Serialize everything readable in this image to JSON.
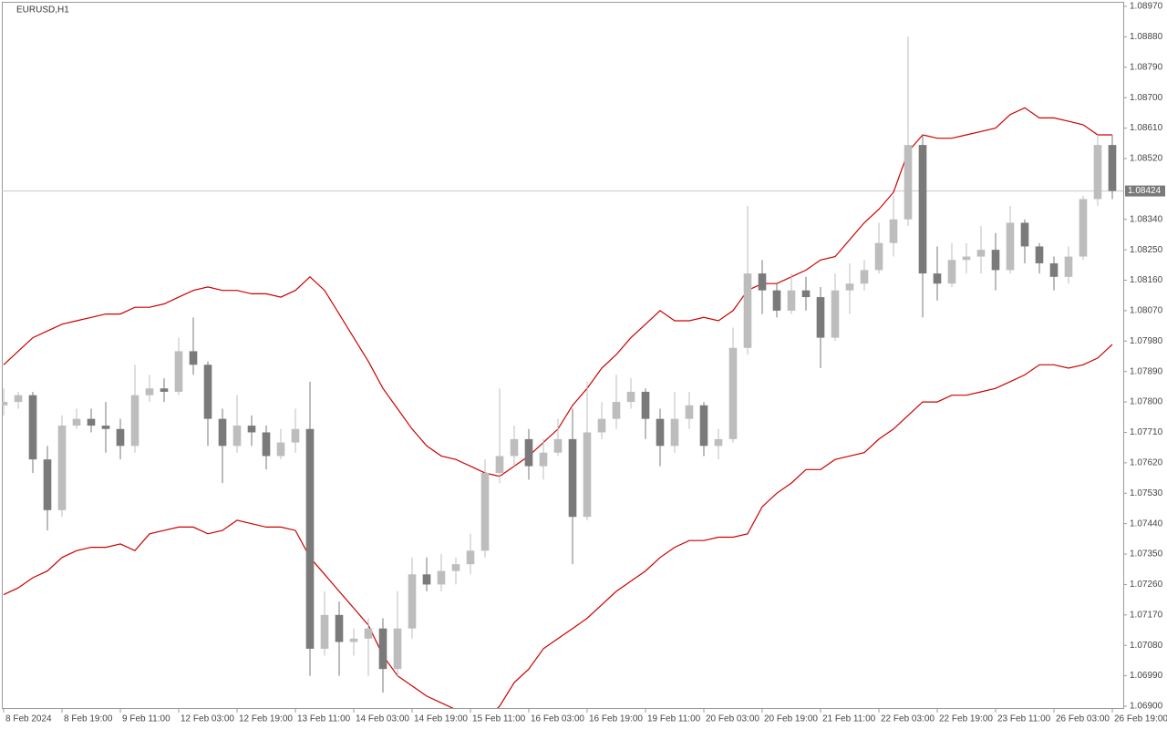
{
  "chart_data": {
    "type": "candlestick",
    "title": "EURUSD,H1",
    "x": [
      0,
      4,
      8,
      12,
      16,
      20,
      24,
      28,
      32,
      36,
      40,
      44,
      48,
      52,
      56,
      60,
      64,
      68,
      72,
      76,
      80,
      84,
      88,
      92,
      96,
      100,
      104,
      108,
      112,
      116,
      120,
      124,
      128,
      132,
      136,
      140,
      144,
      148,
      152,
      156,
      160,
      164,
      168,
      172,
      176,
      180,
      184,
      188,
      192,
      196,
      200,
      204,
      208,
      212,
      216,
      220,
      224,
      228,
      232,
      236,
      240,
      244,
      248,
      252,
      256,
      260,
      264,
      268,
      272,
      276,
      280,
      284,
      288,
      292,
      296,
      300,
      304
    ],
    "ohlc": [
      [
        1.0779,
        1.0784,
        1.0776,
        1.078
      ],
      [
        1.078,
        1.0783,
        1.0778,
        1.0782
      ],
      [
        1.0782,
        1.0783,
        1.0759,
        1.0763
      ],
      [
        1.0763,
        1.0767,
        1.0742,
        1.0748
      ],
      [
        1.0748,
        1.0776,
        1.0746,
        1.0773
      ],
      [
        1.0773,
        1.0778,
        1.0772,
        1.0775
      ],
      [
        1.0775,
        1.0778,
        1.0771,
        1.0773
      ],
      [
        1.0773,
        1.078,
        1.0765,
        1.0772
      ],
      [
        1.0772,
        1.0775,
        1.0763,
        1.0767
      ],
      [
        1.0767,
        1.0791,
        1.0765,
        1.0782
      ],
      [
        1.0782,
        1.0788,
        1.078,
        1.0784
      ],
      [
        1.0784,
        1.0787,
        1.078,
        1.0783
      ],
      [
        1.0783,
        1.0799,
        1.0782,
        1.0795
      ],
      [
        1.0795,
        1.0805,
        1.0788,
        1.0791
      ],
      [
        1.0791,
        1.0792,
        1.0767,
        1.0775
      ],
      [
        1.0775,
        1.0778,
        1.0756,
        1.0767
      ],
      [
        1.0767,
        1.0782,
        1.0765,
        1.0773
      ],
      [
        1.0773,
        1.0776,
        1.0767,
        1.0771
      ],
      [
        1.0771,
        1.0773,
        1.076,
        1.0764
      ],
      [
        1.0764,
        1.0772,
        1.0763,
        1.0768
      ],
      [
        1.0768,
        1.0778,
        1.0765,
        1.0772
      ],
      [
        1.0772,
        1.0786,
        1.0699,
        1.0707
      ],
      [
        1.0707,
        1.0724,
        1.0705,
        1.0717
      ],
      [
        1.0717,
        1.0721,
        1.0699,
        1.0709
      ],
      [
        1.0709,
        1.0713,
        1.0705,
        1.071
      ],
      [
        1.071,
        1.0716,
        1.0699,
        1.0713
      ],
      [
        1.0713,
        1.0716,
        1.0694,
        1.0701
      ],
      [
        1.0701,
        1.0724,
        1.0699,
        1.0713
      ],
      [
        1.0713,
        1.0734,
        1.071,
        1.0729
      ],
      [
        1.0729,
        1.0734,
        1.0724,
        1.0726
      ],
      [
        1.0726,
        1.0735,
        1.0724,
        1.073
      ],
      [
        1.073,
        1.0734,
        1.0726,
        1.0732
      ],
      [
        1.0732,
        1.0741,
        1.0729,
        1.0736
      ],
      [
        1.0736,
        1.0763,
        1.0734,
        1.0759
      ],
      [
        1.0759,
        1.0784,
        1.0756,
        1.0764
      ],
      [
        1.0764,
        1.0773,
        1.0761,
        1.0769
      ],
      [
        1.0769,
        1.0772,
        1.0757,
        1.0761
      ],
      [
        1.0761,
        1.0769,
        1.0757,
        1.0765
      ],
      [
        1.0765,
        1.0775,
        1.0764,
        1.0769
      ],
      [
        1.0769,
        1.0778,
        1.0732,
        1.0746
      ],
      [
        1.0746,
        1.0786,
        1.0745,
        1.0771
      ],
      [
        1.0771,
        1.078,
        1.0769,
        1.0775
      ],
      [
        1.0775,
        1.0788,
        1.0772,
        1.078
      ],
      [
        1.078,
        1.0787,
        1.0778,
        1.0783
      ],
      [
        1.0783,
        1.0784,
        1.0769,
        1.0775
      ],
      [
        1.0775,
        1.0778,
        1.0761,
        1.0767
      ],
      [
        1.0767,
        1.0783,
        1.0765,
        1.0775
      ],
      [
        1.0775,
        1.0783,
        1.0772,
        1.0779
      ],
      [
        1.0779,
        1.078,
        1.0764,
        1.0767
      ],
      [
        1.0767,
        1.0772,
        1.0763,
        1.0769
      ],
      [
        1.0769,
        1.0802,
        1.0768,
        1.0796
      ],
      [
        1.0796,
        1.0838,
        1.0794,
        1.0818
      ],
      [
        1.0818,
        1.0822,
        1.0806,
        1.0813
      ],
      [
        1.0813,
        1.0815,
        1.0805,
        1.0807
      ],
      [
        1.0807,
        1.0818,
        1.0806,
        1.0813
      ],
      [
        1.0813,
        1.0817,
        1.0807,
        1.0811
      ],
      [
        1.0811,
        1.0814,
        1.079,
        1.0799
      ],
      [
        1.0799,
        1.0818,
        1.0798,
        1.0813
      ],
      [
        1.0813,
        1.0821,
        1.0806,
        1.0815
      ],
      [
        1.0815,
        1.0822,
        1.0813,
        1.0819
      ],
      [
        1.0819,
        1.0833,
        1.0818,
        1.0827
      ],
      [
        1.0827,
        1.0841,
        1.0823,
        1.0834
      ],
      [
        1.0834,
        1.0888,
        1.0832,
        1.0856
      ],
      [
        1.0856,
        1.0859,
        1.0805,
        1.0818
      ],
      [
        1.0818,
        1.0826,
        1.081,
        1.0815
      ],
      [
        1.0815,
        1.0827,
        1.0814,
        1.0822
      ],
      [
        1.0822,
        1.0827,
        1.0818,
        1.0823
      ],
      [
        1.0823,
        1.0832,
        1.0818,
        1.0825
      ],
      [
        1.0825,
        1.083,
        1.0813,
        1.0819
      ],
      [
        1.0819,
        1.0838,
        1.0818,
        1.0833
      ],
      [
        1.0833,
        1.0834,
        1.0821,
        1.0826
      ],
      [
        1.0826,
        1.0827,
        1.0818,
        1.0821
      ],
      [
        1.0821,
        1.0823,
        1.0813,
        1.0817
      ],
      [
        1.0817,
        1.0826,
        1.0815,
        1.0823
      ],
      [
        1.0823,
        1.0841,
        1.0822,
        1.084
      ],
      [
        1.084,
        1.0859,
        1.0838,
        1.0856
      ],
      [
        1.0856,
        1.0859,
        1.084,
        1.08424
      ]
    ],
    "bull_color": "#bdbdbd",
    "bear_color": "#7a7a7a",
    "bands": [
      {
        "color": "#cc0000",
        "values": [
          1.0791,
          1.0795,
          1.0799,
          1.0801,
          1.0803,
          1.0804,
          1.0805,
          1.0806,
          1.0806,
          1.0808,
          1.0808,
          1.0809,
          1.0811,
          1.0813,
          1.0814,
          1.0813,
          1.0813,
          1.0812,
          1.0812,
          1.0811,
          1.0813,
          1.0817,
          1.0813,
          1.0806,
          1.0799,
          1.0792,
          1.0784,
          1.0778,
          1.0772,
          1.0767,
          1.0764,
          1.0763,
          1.0761,
          1.0759,
          1.0758,
          1.0761,
          1.0764,
          1.0768,
          1.0772,
          1.0779,
          1.0784,
          1.079,
          1.0794,
          1.0799,
          1.0803,
          1.0807,
          1.0804,
          1.0804,
          1.0805,
          1.0804,
          1.0807,
          1.0813,
          1.0815,
          1.0815,
          1.0817,
          1.0819,
          1.0822,
          1.0823,
          1.0828,
          1.0833,
          1.0837,
          1.0842,
          1.0854,
          1.0859,
          1.0858,
          1.0858,
          1.0859,
          1.086,
          1.0861,
          1.0865,
          1.0867,
          1.0864,
          1.0864,
          1.0863,
          1.0862,
          1.0859,
          1.0859
        ]
      },
      {
        "color": "#cc0000",
        "values": [
          1.0723,
          1.0725,
          1.0728,
          1.073,
          1.0734,
          1.0736,
          1.0737,
          1.0737,
          1.0738,
          1.0736,
          1.0741,
          1.0742,
          1.0743,
          1.0743,
          1.0741,
          1.0742,
          1.0745,
          1.0744,
          1.0743,
          1.0743,
          1.0742,
          1.0734,
          1.0729,
          1.0724,
          1.0719,
          1.0714,
          1.0705,
          1.0699,
          1.0696,
          1.0693,
          1.0691,
          1.0689,
          1.0687,
          1.0686,
          1.069,
          1.0697,
          1.0701,
          1.0707,
          1.071,
          1.0713,
          1.0716,
          1.072,
          1.0724,
          1.0727,
          1.073,
          1.0734,
          1.0737,
          1.0739,
          1.0739,
          1.074,
          1.074,
          1.0741,
          1.0749,
          1.0753,
          1.0756,
          1.076,
          1.076,
          1.0763,
          1.0764,
          1.0765,
          1.0769,
          1.0772,
          1.0776,
          1.078,
          1.078,
          1.0782,
          1.0782,
          1.0783,
          1.0784,
          1.0786,
          1.0788,
          1.0791,
          1.0791,
          1.079,
          1.0791,
          1.0793,
          1.0797
        ]
      }
    ],
    "last_price": {
      "value": 1.08424,
      "label": "1.08424"
    },
    "xlim": [
      -1,
      307
    ],
    "ylim": [
      1.069,
      1.0897
    ],
    "yticks": [
      {
        "value": 1.0897,
        "label": "1.08970"
      },
      {
        "value": 1.0888,
        "label": "1.08880"
      },
      {
        "value": 1.0879,
        "label": "1.08790"
      },
      {
        "value": 1.087,
        "label": "1.08700"
      },
      {
        "value": 1.0861,
        "label": "1.08610"
      },
      {
        "value": 1.0852,
        "label": "1.08520"
      },
      {
        "value": 1.0834,
        "label": "1.08340"
      },
      {
        "value": 1.0825,
        "label": "1.08250"
      },
      {
        "value": 1.0816,
        "label": "1.08160"
      },
      {
        "value": 1.0807,
        "label": "1.08070"
      },
      {
        "value": 1.0798,
        "label": "1.07980"
      },
      {
        "value": 1.0789,
        "label": "1.07890"
      },
      {
        "value": 1.078,
        "label": "1.07800"
      },
      {
        "value": 1.0771,
        "label": "1.07710"
      },
      {
        "value": 1.0762,
        "label": "1.07620"
      },
      {
        "value": 1.0753,
        "label": "1.07530"
      },
      {
        "value": 1.0744,
        "label": "1.07440"
      },
      {
        "value": 1.0735,
        "label": "1.07350"
      },
      {
        "value": 1.0726,
        "label": "1.07260"
      },
      {
        "value": 1.0717,
        "label": "1.07170"
      },
      {
        "value": 1.0708,
        "label": "1.07080"
      },
      {
        "value": 1.0699,
        "label": "1.06990"
      },
      {
        "value": 1.069,
        "label": "1.06900"
      }
    ],
    "xticks": [
      {
        "value": 0,
        "label": "8 Feb 2024"
      },
      {
        "value": 16,
        "label": "8 Feb 19:00"
      },
      {
        "value": 32,
        "label": "9 Feb 11:00"
      },
      {
        "value": 48,
        "label": "12 Feb 03:00"
      },
      {
        "value": 64,
        "label": "12 Feb 19:00"
      },
      {
        "value": 80,
        "label": "13 Feb 11:00"
      },
      {
        "value": 96,
        "label": "14 Feb 03:00"
      },
      {
        "value": 112,
        "label": "14 Feb 19:00"
      },
      {
        "value": 128,
        "label": "15 Feb 11:00"
      },
      {
        "value": 144,
        "label": "16 Feb 03:00"
      },
      {
        "value": 160,
        "label": "16 Feb 19:00"
      },
      {
        "value": 176,
        "label": "19 Feb 11:00"
      },
      {
        "value": 192,
        "label": "20 Feb 03:00"
      },
      {
        "value": 208,
        "label": "20 Feb 19:00"
      },
      {
        "value": 224,
        "label": "21 Feb 11:00"
      },
      {
        "value": 240,
        "label": "22 Feb 03:00"
      },
      {
        "value": 256,
        "label": "22 Feb 19:00"
      },
      {
        "value": 272,
        "label": "23 Feb 11:00"
      },
      {
        "value": 288,
        "label": "26 Feb 03:00"
      },
      {
        "value": 304,
        "label": "26 Feb 19:00"
      }
    ]
  }
}
